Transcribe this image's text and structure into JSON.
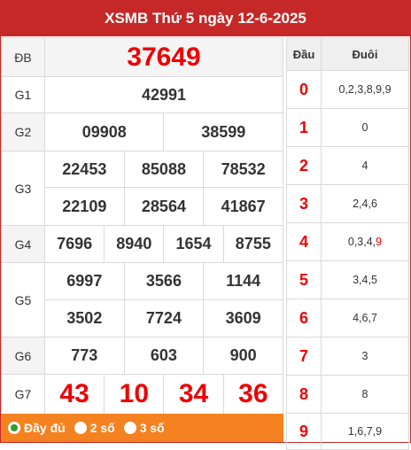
{
  "title": "XSMB Thứ 5 ngày 12-6-2025",
  "prizes": {
    "db": {
      "label": "ĐB",
      "numbers": [
        "37649"
      ]
    },
    "g1": {
      "label": "G1",
      "numbers": [
        "42991"
      ]
    },
    "g2": {
      "label": "G2",
      "numbers": [
        "09908",
        "38599"
      ]
    },
    "g3": {
      "label": "G3",
      "numbers": [
        "22453",
        "85088",
        "78532",
        "22109",
        "28564",
        "41867"
      ]
    },
    "g4": {
      "label": "G4",
      "numbers": [
        "7696",
        "8940",
        "1654",
        "8755"
      ]
    },
    "g5": {
      "label": "G5",
      "numbers": [
        "6997",
        "3566",
        "1144",
        "3502",
        "7724",
        "3609"
      ]
    },
    "g6": {
      "label": "G6",
      "numbers": [
        "773",
        "603",
        "900"
      ]
    },
    "g7": {
      "label": "G7",
      "numbers": [
        "43",
        "10",
        "34",
        "36"
      ]
    }
  },
  "filter": {
    "options": [
      "Đầy đủ",
      "2 số",
      "3 số"
    ],
    "selected": "Đầy đủ"
  },
  "loto": {
    "header_dau": "Đầu",
    "header_duoi": "Đuôi",
    "rows": [
      {
        "dau": "0",
        "duoi": "0,2,3,8,9,9",
        "special_digit": ""
      },
      {
        "dau": "1",
        "duoi": "0",
        "special_digit": ""
      },
      {
        "dau": "2",
        "duoi": "4",
        "special_digit": ""
      },
      {
        "dau": "3",
        "duoi": "2,4,6",
        "special_digit": ""
      },
      {
        "dau": "4",
        "duoi": "0,3,4,",
        "special_digit": "9"
      },
      {
        "dau": "5",
        "duoi": "3,4,5",
        "special_digit": ""
      },
      {
        "dau": "6",
        "duoi": "4,6,7",
        "special_digit": ""
      },
      {
        "dau": "7",
        "duoi": "3",
        "special_digit": ""
      },
      {
        "dau": "8",
        "duoi": "8",
        "special_digit": ""
      },
      {
        "dau": "9",
        "duoi": "1,6,7,9",
        "special_digit": ""
      }
    ]
  },
  "colors": {
    "header": "#c62828",
    "accent_red": "#e00000",
    "filter_bar": "#f58220",
    "radio_checked": "#2e9d2e"
  }
}
